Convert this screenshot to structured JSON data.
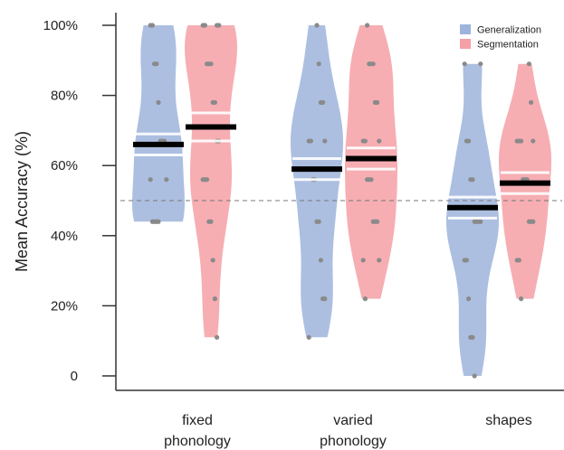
{
  "chart_data": {
    "type": "violin",
    "ylabel": "Mean Accuracy (%)",
    "ylim": [
      0,
      100
    ],
    "yticks": [
      {
        "value": 0,
        "label": "0"
      },
      {
        "value": 20,
        "label": "20%"
      },
      {
        "value": 40,
        "label": "40%"
      },
      {
        "value": 60,
        "label": "60%"
      },
      {
        "value": 80,
        "label": "80%"
      },
      {
        "value": 100,
        "label": "100%"
      }
    ],
    "categories": [
      {
        "line1": "fixed",
        "line2": "phonology"
      },
      {
        "line1": "varied",
        "line2": "phonology"
      },
      {
        "line1": "shapes",
        "line2": ""
      }
    ],
    "chance_level": 50,
    "legend_position": "top-right",
    "series": [
      {
        "name": "Generalization",
        "color": "#9db4dc",
        "means": [
          66,
          59,
          48
        ],
        "ci": [
          [
            63,
            69
          ],
          [
            56,
            62
          ],
          [
            45,
            51
          ]
        ],
        "ranges": [
          [
            44,
            100
          ],
          [
            11,
            100
          ],
          [
            0,
            89
          ]
        ],
        "points": [
          [
            100,
            100,
            89,
            89,
            78,
            67,
            67,
            67,
            56,
            56,
            44,
            44,
            44,
            44
          ],
          [
            100,
            89,
            78,
            78,
            67,
            67,
            67,
            56,
            56,
            44,
            44,
            33,
            22,
            22,
            11
          ],
          [
            89,
            89,
            67,
            67,
            56,
            56,
            44,
            44,
            44,
            44,
            33,
            33,
            22,
            11,
            11,
            0
          ]
        ]
      },
      {
        "name": "Segmentation",
        "color": "#f4a0a6",
        "means": [
          71,
          62,
          55
        ],
        "ci": [
          [
            67,
            75
          ],
          [
            59,
            65
          ],
          [
            52,
            58
          ]
        ],
        "ranges": [
          [
            11,
            100
          ],
          [
            22,
            100
          ],
          [
            22,
            89
          ]
        ],
        "points": [
          [
            100,
            100,
            100,
            100,
            89,
            89,
            89,
            78,
            78,
            67,
            67,
            56,
            56,
            56,
            44,
            44,
            33,
            22,
            11
          ],
          [
            100,
            89,
            89,
            89,
            78,
            78,
            67,
            67,
            67,
            56,
            56,
            56,
            44,
            44,
            44,
            33,
            33,
            22
          ],
          [
            89,
            78,
            67,
            67,
            67,
            67,
            56,
            56,
            56,
            44,
            44,
            44,
            33,
            33,
            22
          ]
        ]
      }
    ]
  }
}
